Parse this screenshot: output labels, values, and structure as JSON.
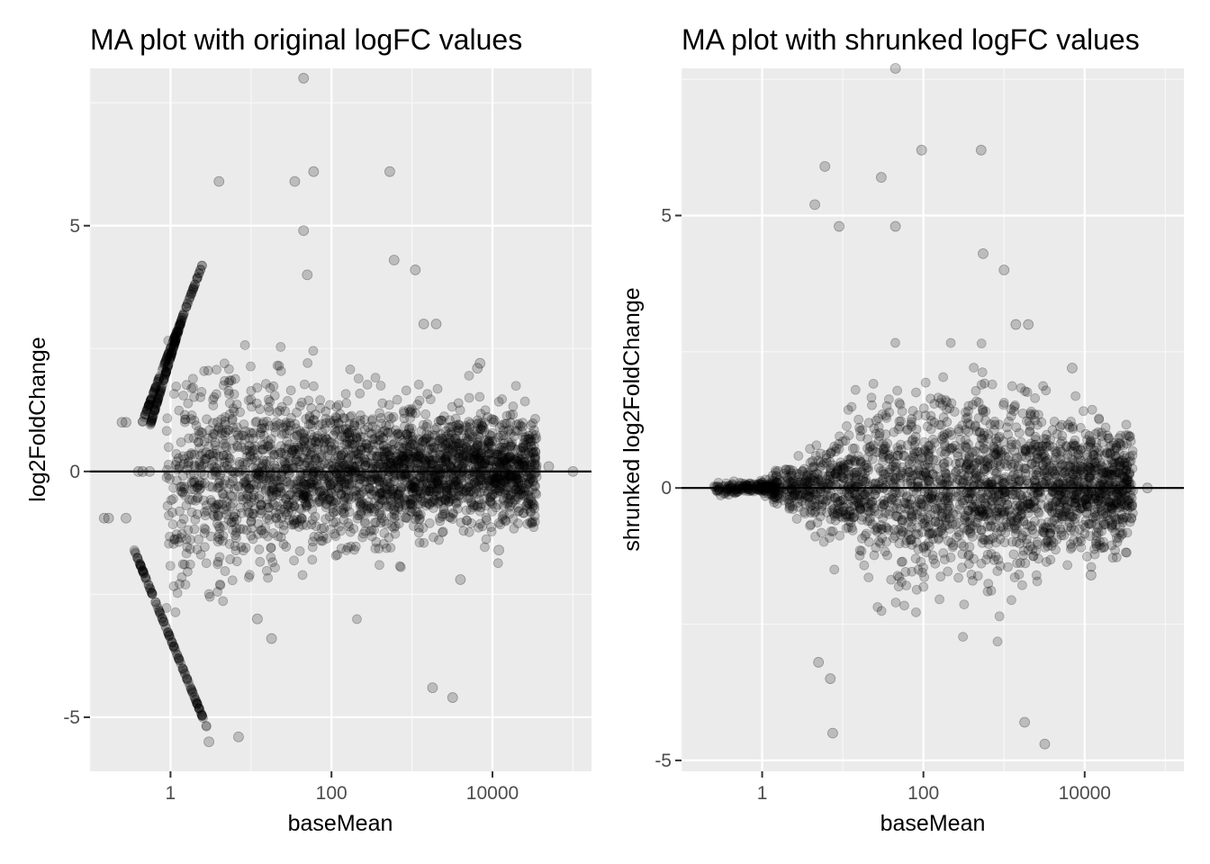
{
  "panels": [
    {
      "title": "MA plot with original logFC values",
      "xlabel": "baseMean",
      "ylabel": "log2FoldChange"
    },
    {
      "title": "MA plot with shrunked logFC values",
      "xlabel": "baseMean",
      "ylabel": "shrunked log2FoldChange"
    }
  ],
  "chart_data": [
    {
      "type": "scatter",
      "title": "MA plot with original logFC values",
      "xlabel": "baseMean",
      "ylabel": "log2FoldChange",
      "x_scale": "log10",
      "xlim": [
        0.1,
        170000
      ],
      "ylim": [
        -6.1,
        8.2
      ],
      "x_ticks": [
        1,
        100,
        10000
      ],
      "x_tick_labels": [
        "1",
        "100",
        "10000"
      ],
      "y_ticks": [
        -5,
        0,
        5
      ],
      "y_tick_labels": [
        "-5",
        "0",
        "5"
      ],
      "hline": 0,
      "grid": true,
      "point_color": "#000000",
      "point_alpha": 0.2,
      "background": "#ebebeb",
      "points": [
        {
          "x": 45,
          "y": 8.0
        },
        {
          "x": 60,
          "y": 6.1
        },
        {
          "x": 530,
          "y": 6.1
        },
        {
          "x": 35,
          "y": 5.9
        },
        {
          "x": 4,
          "y": 5.9
        },
        {
          "x": 45,
          "y": 4.9
        },
        {
          "x": 600,
          "y": 4.3
        },
        {
          "x": 1100,
          "y": 4.1
        },
        {
          "x": 50,
          "y": 4.0
        },
        {
          "x": 2000,
          "y": 3.0
        },
        {
          "x": 1400,
          "y": 3.0
        },
        {
          "x": 7000,
          "y": 2.2
        },
        {
          "x": 6500,
          "y": 2.1
        },
        {
          "x": 30000,
          "y": 0.2
        },
        {
          "x": 50000,
          "y": 0.1
        },
        {
          "x": 100000,
          "y": 0.0
        },
        {
          "x": 12000,
          "y": -1.6
        },
        {
          "x": 4000,
          "y": -2.2
        },
        {
          "x": 1800,
          "y": -4.4
        },
        {
          "x": 3200,
          "y": -4.6
        },
        {
          "x": 3,
          "y": -5.5
        },
        {
          "x": 7,
          "y": -5.4
        },
        {
          "x": 12,
          "y": -3.0
        },
        {
          "x": 18,
          "y": -3.4
        },
        {
          "x": 0.15,
          "y": -0.95
        },
        {
          "x": 0.17,
          "y": -0.95
        },
        {
          "x": 0.28,
          "y": -0.95
        },
        {
          "x": 0.25,
          "y": 1.0
        },
        {
          "x": 0.28,
          "y": 1.0
        },
        {
          "x": 0.4,
          "y": 0.0
        },
        {
          "x": 0.45,
          "y": 0.0
        },
        {
          "x": 0.55,
          "y": 0.0
        }
      ]
    },
    {
      "type": "scatter",
      "title": "MA plot with shrunked logFC values",
      "xlabel": "baseMean",
      "ylabel": "shrunked log2FoldChange",
      "x_scale": "log10",
      "xlim": [
        0.1,
        170000
      ],
      "ylim": [
        -5.2,
        7.7
      ],
      "x_ticks": [
        1,
        100,
        10000
      ],
      "x_tick_labels": [
        "1",
        "100",
        "10000"
      ],
      "y_ticks": [
        -5,
        0,
        5
      ],
      "y_tick_labels": [
        "-5",
        "0",
        "5"
      ],
      "hline": 0,
      "grid": true,
      "point_color": "#000000",
      "point_alpha": 0.2,
      "background": "#ebebeb",
      "points": [
        {
          "x": 45,
          "y": 7.7
        },
        {
          "x": 95,
          "y": 6.2
        },
        {
          "x": 520,
          "y": 6.2
        },
        {
          "x": 6,
          "y": 5.9
        },
        {
          "x": 30,
          "y": 5.7
        },
        {
          "x": 4.5,
          "y": 5.2
        },
        {
          "x": 45,
          "y": 4.8
        },
        {
          "x": 9,
          "y": 4.8
        },
        {
          "x": 550,
          "y": 4.3
        },
        {
          "x": 1000,
          "y": 4.0
        },
        {
          "x": 2000,
          "y": 3.0
        },
        {
          "x": 1400,
          "y": 3.0
        },
        {
          "x": 7000,
          "y": 2.2
        },
        {
          "x": 30000,
          "y": 0.2
        },
        {
          "x": 60000,
          "y": 0.0
        },
        {
          "x": 12000,
          "y": -1.6
        },
        {
          "x": 1800,
          "y": -4.3
        },
        {
          "x": 3200,
          "y": -4.7
        },
        {
          "x": 7.5,
          "y": -4.5
        },
        {
          "x": 7,
          "y": -3.5
        },
        {
          "x": 5,
          "y": -3.2
        }
      ]
    }
  ]
}
